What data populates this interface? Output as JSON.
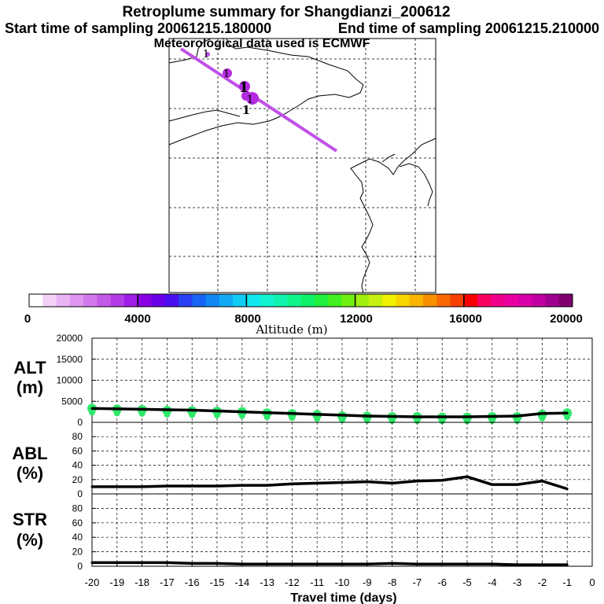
{
  "header": {
    "title": "Retroplume summary for Shangdianzi_200612",
    "start": "Start time of sampling 20061215.180000",
    "end": "End time of sampling 20061215.210000",
    "met": "Meteorological data used is ECMWF"
  },
  "colors": {
    "plume_line": "#c050e8",
    "cluster": "#b42ae0",
    "alt_dots": "#2ee86a",
    "axis": "#000000"
  },
  "chart_data": [
    {
      "type": "line",
      "name": "map-plume",
      "description_labels": [
        "1",
        "1",
        "1",
        "1",
        "1"
      ],
      "cluster_labels": [
        "1",
        "1",
        "1",
        "1",
        "1"
      ]
    },
    {
      "type": "colorbar",
      "name": "altitude-colorbar",
      "tick_labels": [
        "0",
        "4000",
        "8000",
        "12000",
        "16000",
        "20000"
      ],
      "range": [
        0,
        20000
      ],
      "label": "Altitude (m)",
      "colors": [
        "#ffffff",
        "#f4d2f8",
        "#eab4f4",
        "#de96f0",
        "#d278ec",
        "#c45ae8",
        "#b43ce6",
        "#a01ee6",
        "#8800e6",
        "#6a00e6",
        "#4a10f0",
        "#2a40f4",
        "#1864f4",
        "#1088f4",
        "#10aaf4",
        "#10ccf4",
        "#10e8f0",
        "#10f4d2",
        "#10f4b0",
        "#10f48c",
        "#10f068",
        "#20f040",
        "#40f020",
        "#70f010",
        "#a0f010",
        "#c8f010",
        "#f0f000",
        "#f8d400",
        "#f8b400",
        "#f89000",
        "#f86800",
        "#f84000",
        "#f80000",
        "#f80060",
        "#f0008a",
        "#e800a0",
        "#d800a8",
        "#c000a0",
        "#a00090",
        "#800070"
      ]
    },
    {
      "type": "line",
      "name": "ALT",
      "label_top": "ALT",
      "label_unit": "(m)",
      "ylim": [
        0,
        20000
      ],
      "yticks": [
        "0",
        "5000",
        "10000",
        "15000",
        "20000"
      ],
      "x": [
        -20,
        -19,
        -18,
        -17,
        -16,
        -15,
        -14,
        -13,
        -12,
        -11,
        -10,
        -9,
        -8,
        -7,
        -6,
        -5,
        -4,
        -3,
        -2,
        -1
      ],
      "values": [
        3300,
        3200,
        3100,
        3000,
        2900,
        2700,
        2500,
        2300,
        2100,
        1900,
        1700,
        1500,
        1400,
        1300,
        1300,
        1300,
        1400,
        1500,
        2100,
        2200
      ],
      "dots": [
        3300,
        3100,
        3000,
        2800,
        2700,
        2600,
        2500,
        2200,
        2000,
        1800,
        1500,
        1400,
        1300,
        1300,
        1200,
        1200,
        1300,
        1300,
        1900,
        2200
      ]
    },
    {
      "type": "line",
      "name": "ABL",
      "label_top": "ABL",
      "label_unit": "(%)",
      "ylim": [
        0,
        100
      ],
      "yticks": [
        "0",
        "20",
        "40",
        "60",
        "80"
      ],
      "x": [
        -20,
        -19,
        -18,
        -17,
        -16,
        -15,
        -14,
        -13,
        -12,
        -11,
        -10,
        -9,
        -8,
        -7,
        -6,
        -5,
        -4,
        -3,
        -2,
        -1
      ],
      "values": [
        10,
        10,
        10,
        11,
        11,
        11,
        12,
        12,
        14,
        15,
        16,
        17,
        15,
        18,
        19,
        24,
        13,
        13,
        18,
        7
      ]
    },
    {
      "type": "line",
      "name": "STR",
      "label_top": "STR",
      "label_unit": "(%)",
      "ylim": [
        0,
        100
      ],
      "yticks": [
        "0",
        "20",
        "40",
        "60",
        "80"
      ],
      "x": [
        -20,
        -19,
        -18,
        -17,
        -16,
        -15,
        -14,
        -13,
        -12,
        -11,
        -10,
        -9,
        -8,
        -7,
        -6,
        -5,
        -4,
        -3,
        -2,
        -1
      ],
      "values": [
        5,
        5,
        5,
        5,
        4,
        4,
        3,
        3,
        3,
        3,
        3,
        3,
        4,
        3,
        3,
        3,
        3,
        2,
        2,
        2
      ]
    }
  ],
  "x_axis": {
    "ticks": [
      "-20",
      "-19",
      "-18",
      "-17",
      "-16",
      "-15",
      "-14",
      "-13",
      "-12",
      "-11",
      "-10",
      "-9",
      "-8",
      "-7",
      "-6",
      "-5",
      "-4",
      "-3",
      "-2",
      "-1",
      "0"
    ],
    "label": "Travel time (days)"
  }
}
